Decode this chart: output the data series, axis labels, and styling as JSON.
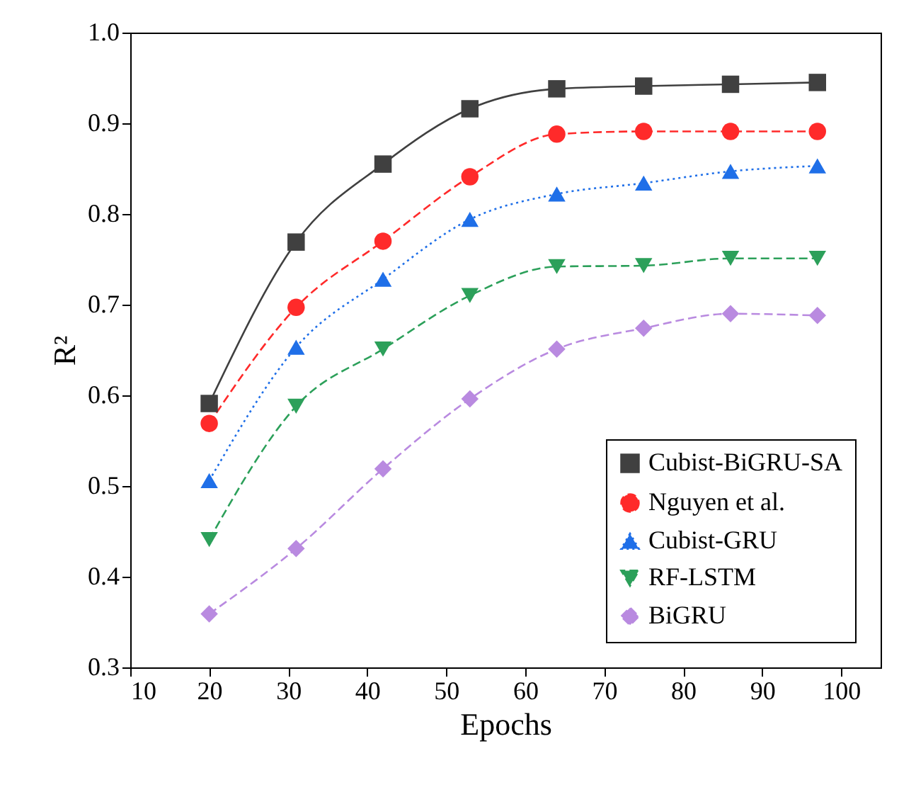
{
  "chart_data": {
    "type": "line",
    "xlabel": "Epochs",
    "ylabel": "R²",
    "x": [
      20,
      31,
      42,
      53,
      64,
      75,
      86,
      97
    ],
    "series": [
      {
        "name": "Cubist-BiGRU-SA",
        "color": "#404040",
        "marker": "square",
        "line_style": "solid",
        "values": [
          0.591,
          0.769,
          0.855,
          0.916,
          0.938,
          0.941,
          0.943,
          0.945
        ]
      },
      {
        "name": "Nguyen et al.",
        "color": "#ff2a2a",
        "marker": "circle",
        "line_style": "dashed",
        "values": [
          0.569,
          0.697,
          0.77,
          0.841,
          0.888,
          0.891,
          0.891,
          0.891
        ]
      },
      {
        "name": "Cubist-GRU",
        "color": "#1f6fe8",
        "marker": "triangle",
        "line_style": "dotted",
        "values": [
          0.506,
          0.653,
          0.728,
          0.794,
          0.822,
          0.834,
          0.847,
          0.853
        ]
      },
      {
        "name": "RF-LSTM",
        "color": "#2ca05a",
        "marker": "triangle-down",
        "line_style": "dashed",
        "values": [
          0.441,
          0.588,
          0.651,
          0.71,
          0.742,
          0.743,
          0.751,
          0.751
        ]
      },
      {
        "name": "BiGRU",
        "color": "#b98ae0",
        "marker": "diamond",
        "line_style": "dashed",
        "values": [
          0.359,
          0.431,
          0.519,
          0.596,
          0.651,
          0.674,
          0.69,
          0.688
        ]
      }
    ],
    "xlim": [
      10,
      105
    ],
    "xticks": [
      10,
      20,
      30,
      40,
      50,
      60,
      70,
      80,
      90,
      100
    ],
    "ylim": [
      0.3,
      1.0
    ],
    "yticks": [
      0.3,
      0.4,
      0.5,
      0.6,
      0.7,
      0.8,
      0.9,
      {
        "value": 1,
        "label": "1.0"
      }
    ],
    "grid": false,
    "legend": "bottom right"
  }
}
